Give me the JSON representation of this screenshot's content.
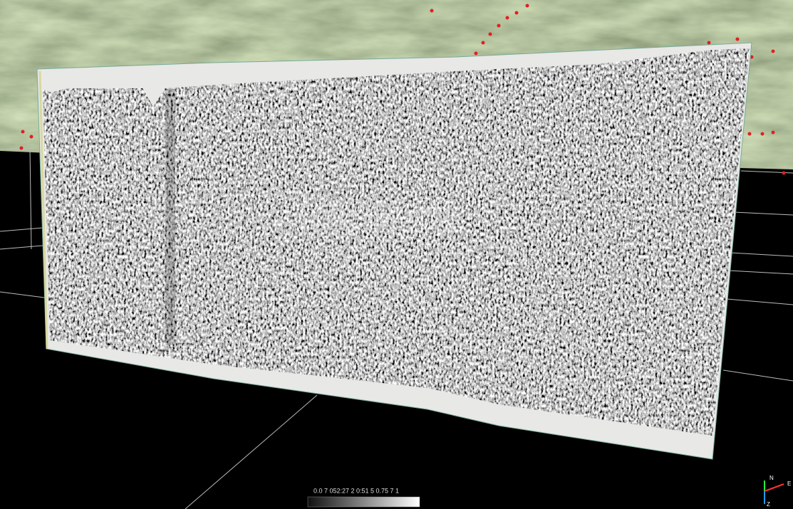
{
  "colorbar": {
    "labels": "0.0 7 052:27 2 0:51 5 0.75 7 1"
  },
  "axes_triad": {
    "north": "N",
    "east": "E",
    "up": "Z"
  }
}
